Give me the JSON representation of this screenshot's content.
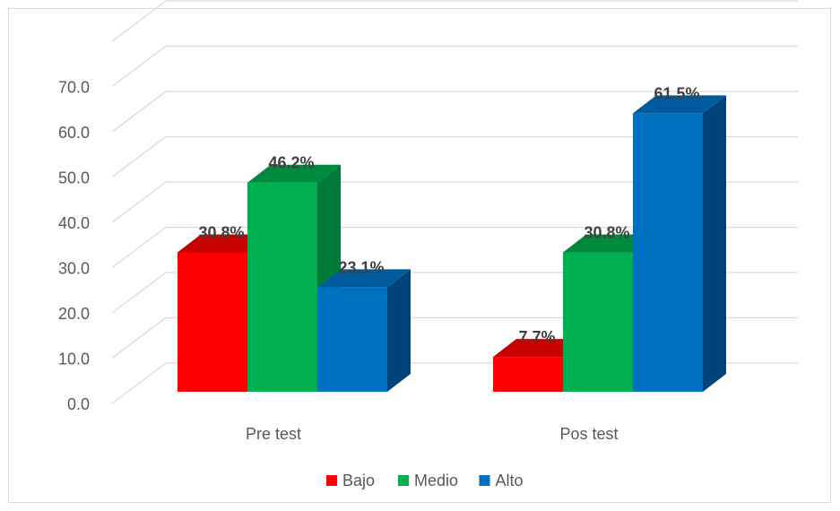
{
  "chart_data": {
    "type": "bar",
    "style": "3d-clustered-column",
    "categories": [
      "Pre test",
      "Pos test"
    ],
    "series": [
      {
        "name": "Bajo",
        "values": [
          30.8,
          7.7
        ],
        "labels": [
          "30.8%",
          "7.7%"
        ],
        "color": "#ff0000",
        "side": "#c00000",
        "top": "#c80000"
      },
      {
        "name": "Medio",
        "values": [
          46.2,
          30.8
        ],
        "labels": [
          "46.2%",
          "30.8%"
        ],
        "color": "#00b050",
        "side": "#007a38",
        "top": "#008a3e"
      },
      {
        "name": "Alto",
        "values": [
          23.1,
          61.5
        ],
        "labels": [
          "23.1%",
          "61.5%"
        ],
        "color": "#0070c0",
        "side": "#00427a",
        "top": "#005a9e"
      }
    ],
    "ylim": [
      0,
      70
    ],
    "yticks": [
      "0.0",
      "10.0",
      "20.0",
      "30.0",
      "40.0",
      "50.0",
      "60.0",
      "70.0"
    ],
    "grid": true,
    "legend": "bottom",
    "title": "",
    "xlabel": "",
    "ylabel": ""
  }
}
